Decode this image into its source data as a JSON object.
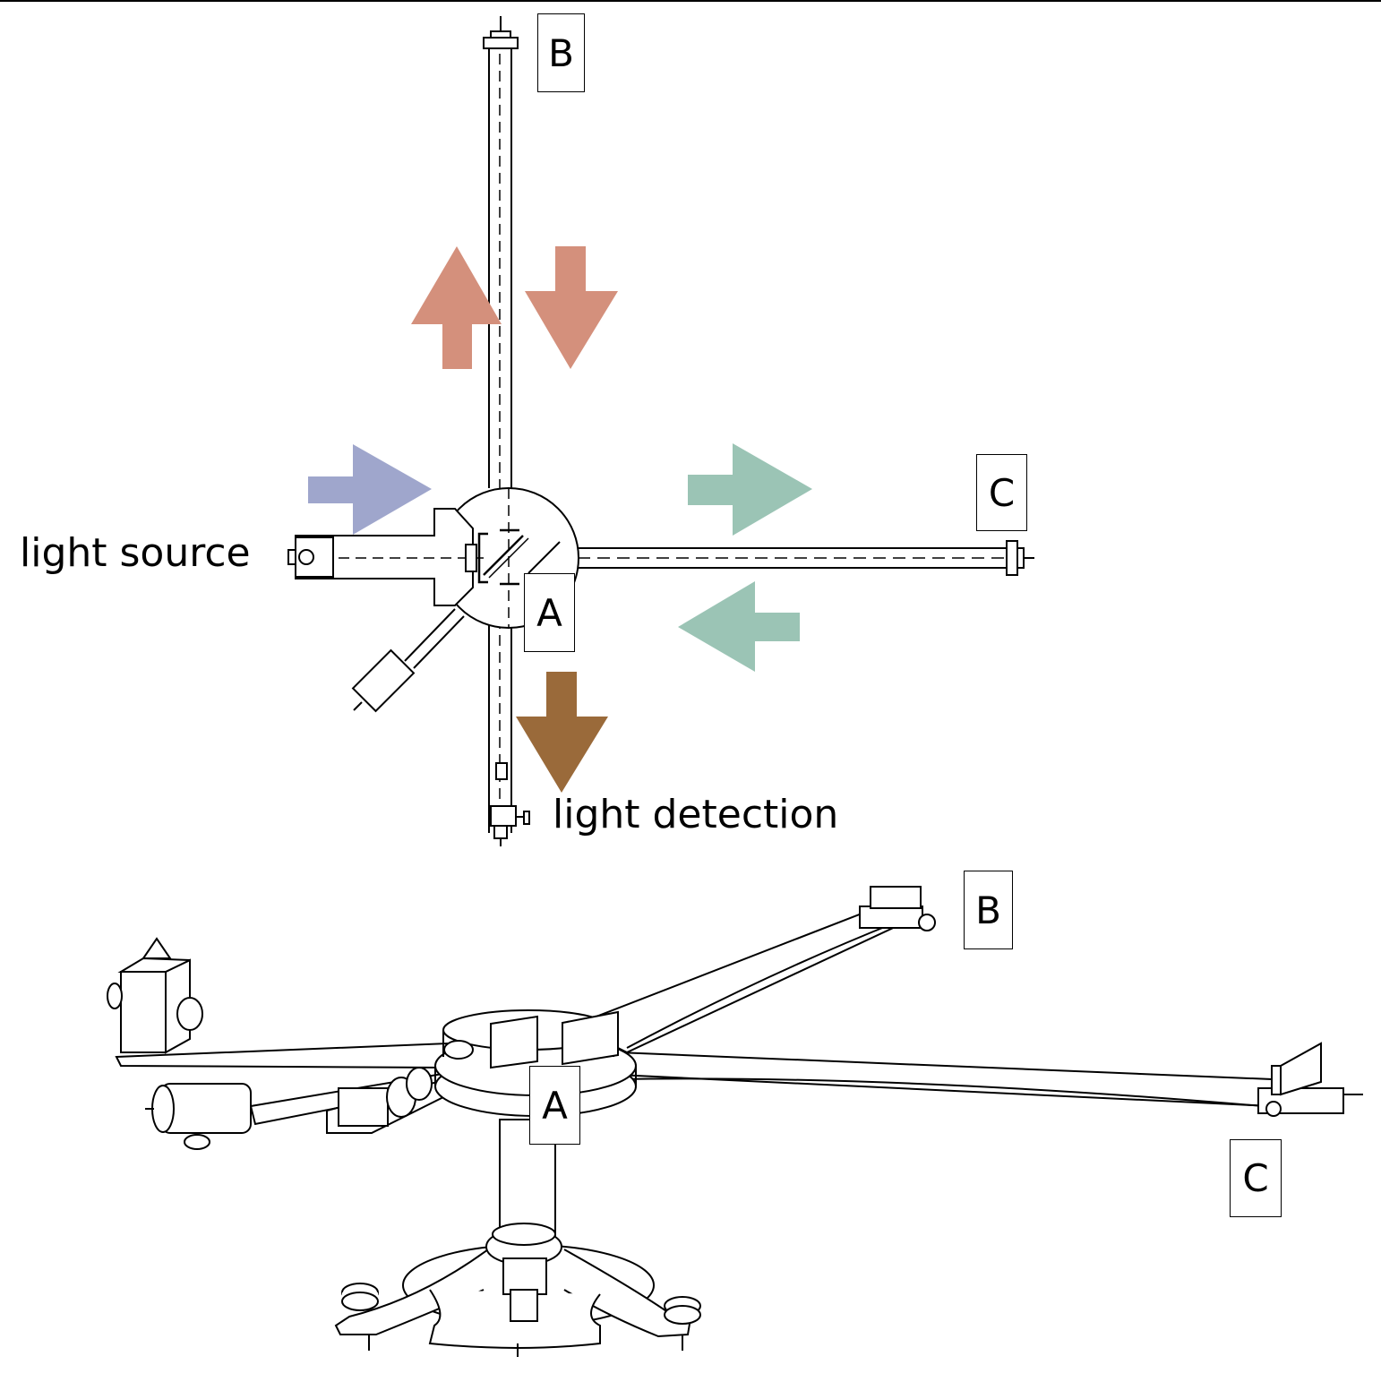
{
  "top_view": {
    "labels": {
      "a": "A",
      "b": "B",
      "c": "C"
    },
    "light_source": "light source",
    "light_detection": "light detection"
  },
  "perspective_view": {
    "labels": {
      "a": "A",
      "b": "B",
      "c": "C"
    }
  },
  "colors": {
    "arm_b_arrows": "#d4907c",
    "incoming_arrow": "#9fa6cc",
    "arm_c_arrows": "#9bc4b5",
    "output_arrow": "#9a6a3a",
    "line": "#000000"
  }
}
